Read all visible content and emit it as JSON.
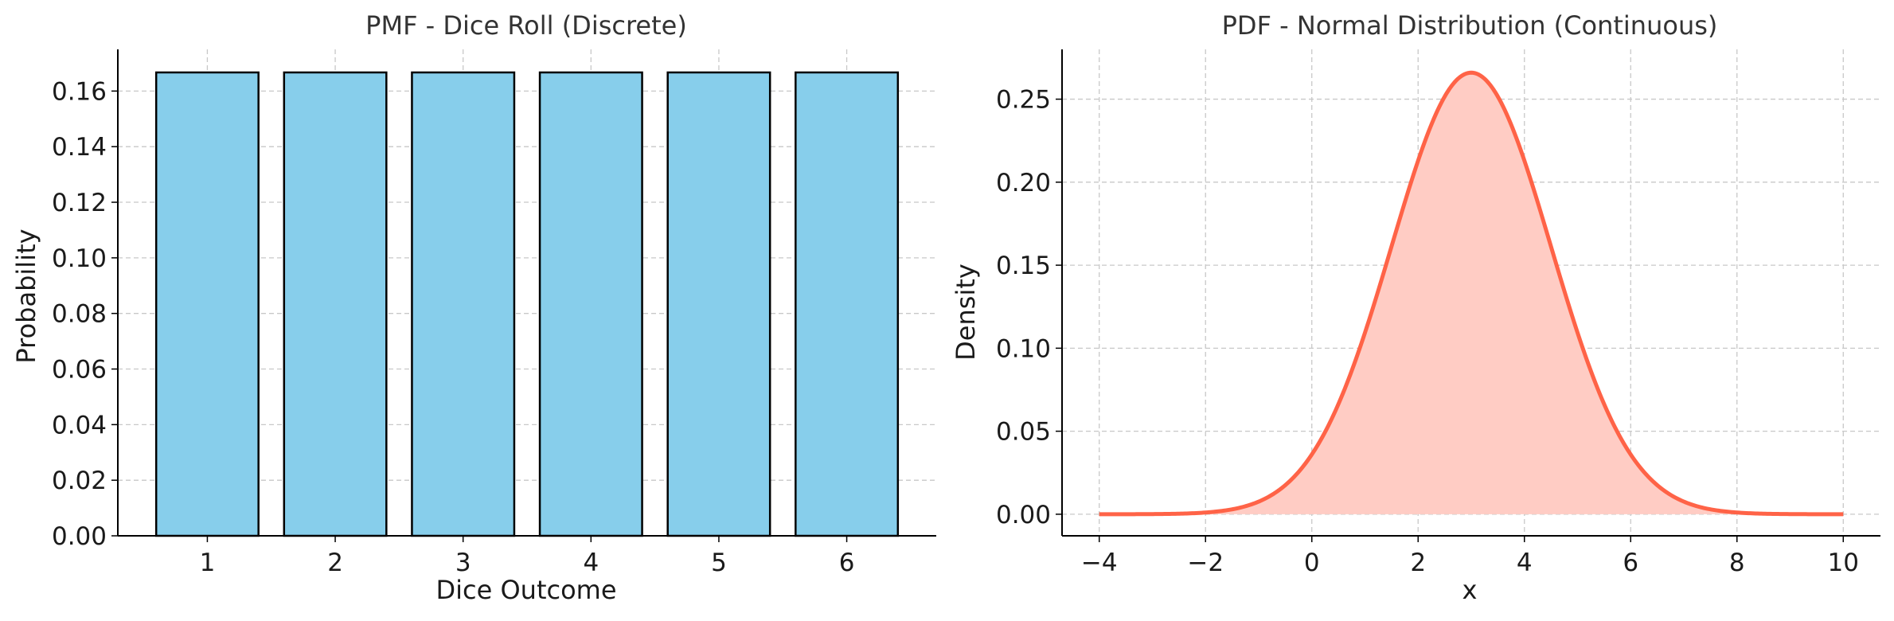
{
  "chart_data": [
    {
      "type": "bar",
      "title": "PMF - Dice Roll (Discrete)",
      "xlabel": "Dice Outcome",
      "ylabel": "Probability",
      "categories": [
        "1",
        "2",
        "3",
        "4",
        "5",
        "6"
      ],
      "values": [
        0.1667,
        0.1667,
        0.1667,
        0.1667,
        0.1667,
        0.1667
      ],
      "ylim": [
        0,
        0.175
      ],
      "yticks": [
        "0.00",
        "0.02",
        "0.04",
        "0.06",
        "0.08",
        "0.10",
        "0.12",
        "0.14",
        "0.16"
      ],
      "grid": true,
      "colors": {
        "bar_fill": "#87CEEB",
        "bar_edge": "#000000"
      }
    },
    {
      "type": "area",
      "title": "PDF - Normal Distribution (Continuous)",
      "xlabel": "x",
      "ylabel": "Density",
      "distribution": {
        "mean": 3,
        "std": 1.5
      },
      "x_range": [
        -4,
        10
      ],
      "xlim": [
        -4.7,
        10.7
      ],
      "ylim": [
        -0.013,
        0.28
      ],
      "xticks": [
        "−4",
        "−2",
        "0",
        "2",
        "4",
        "6",
        "8",
        "10"
      ],
      "yticks": [
        "0.00",
        "0.05",
        "0.10",
        "0.15",
        "0.20",
        "0.25"
      ],
      "grid": true,
      "colors": {
        "line": "#FF6347",
        "fill": "#FFCCC4"
      }
    }
  ]
}
